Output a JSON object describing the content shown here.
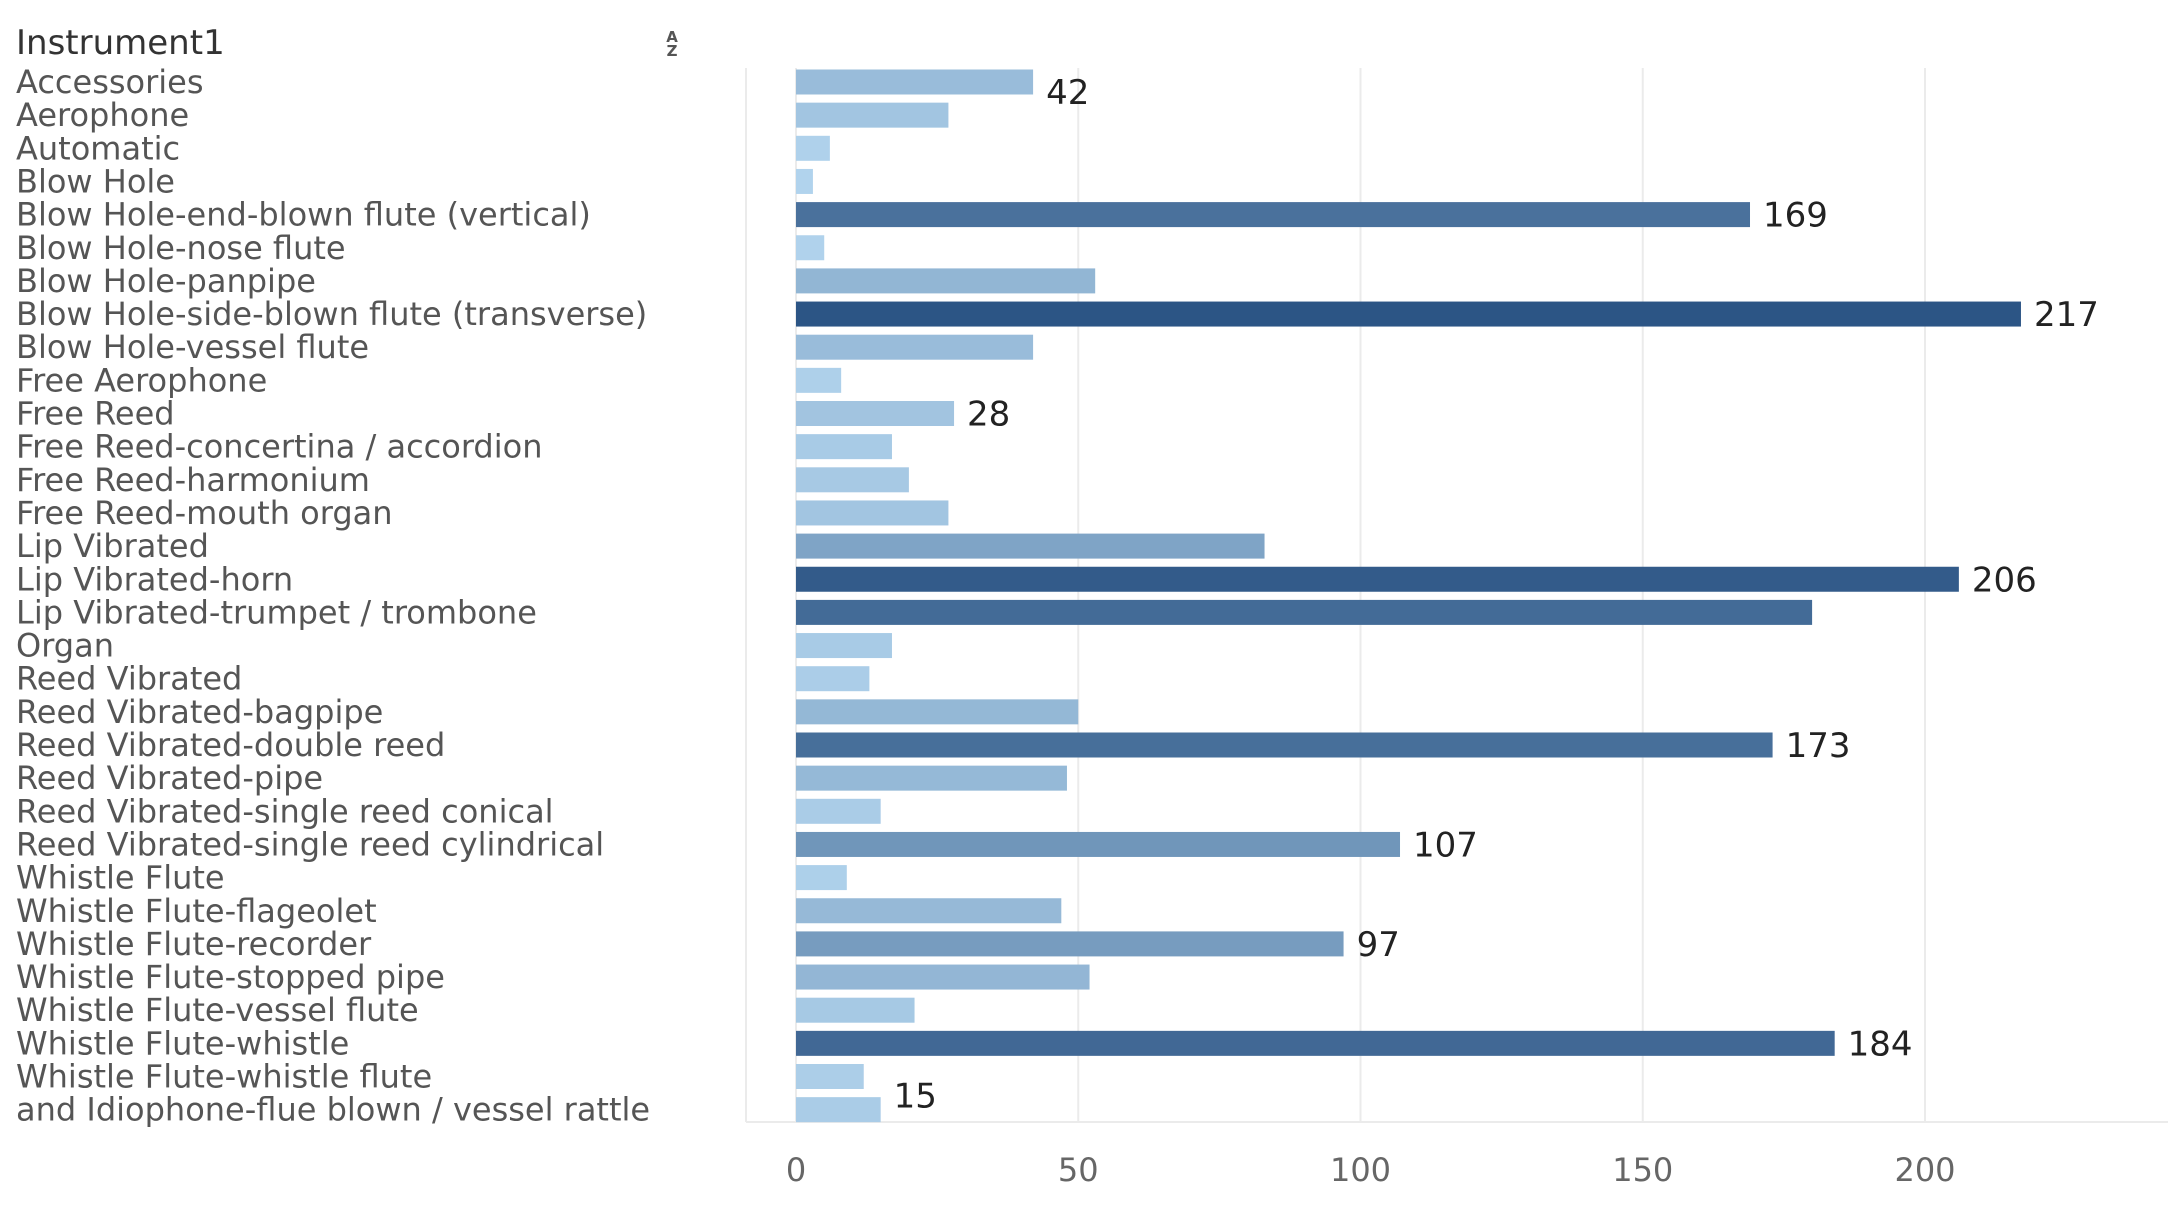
{
  "header": {
    "field_title": "Instrument1",
    "sort_icon": "sort-alpha-icon",
    "sort_icon_glyph_top": "A",
    "sort_icon_glyph_bottom": "Z"
  },
  "colors": {
    "bar_light": "#b3d5ee",
    "bar_dark": "#2c5585",
    "grid": "#ebebeb",
    "axis_text": "#666666"
  },
  "chart_data": {
    "type": "bar",
    "orientation": "horizontal",
    "title": "",
    "xlabel": "",
    "ylabel": "Instrument1",
    "xlim": [
      0,
      236
    ],
    "x_ticks": [
      0,
      50,
      100,
      150,
      200
    ],
    "grid": true,
    "categories": [
      "Accessories",
      "Aerophone",
      "Automatic",
      "Blow Hole",
      "Blow Hole-end-blown flute (vertical)",
      "Blow Hole-nose flute",
      "Blow Hole-panpipe",
      "Blow Hole-side-blown flute (transverse)",
      "Blow Hole-vessel flute",
      "Free Aerophone",
      "Free Reed",
      "Free Reed-concertina / accordion",
      "Free Reed-harmonium",
      "Free Reed-mouth organ",
      "Lip Vibrated",
      "Lip Vibrated-horn",
      "Lip Vibrated-trumpet / trombone",
      "Organ",
      "Reed Vibrated",
      "Reed Vibrated-bagpipe",
      "Reed Vibrated-double reed",
      "Reed Vibrated-pipe",
      "Reed Vibrated-single reed conical",
      "Reed Vibrated-single reed cylindrical",
      "Whistle Flute",
      "Whistle Flute-flageolet",
      "Whistle Flute-recorder",
      "Whistle Flute-stopped pipe",
      "Whistle Flute-vessel flute",
      "Whistle Flute-whistle",
      "Whistle Flute-whistle flute",
      "and Idiophone-flue blown / vessel rattle"
    ],
    "values": [
      42,
      27,
      6,
      3,
      169,
      5,
      53,
      217,
      42,
      8,
      28,
      17,
      20,
      27,
      83,
      206,
      180,
      17,
      13,
      50,
      173,
      48,
      15,
      107,
      9,
      47,
      97,
      52,
      21,
      184,
      12,
      15
    ],
    "data_labels": [
      {
        "category": "Accessories",
        "text": "42"
      },
      {
        "category": "Blow Hole-end-blown flute (vertical)",
        "text": "169"
      },
      {
        "category": "Blow Hole-side-blown flute (transverse)",
        "text": "217"
      },
      {
        "category": "Free Reed",
        "text": "28"
      },
      {
        "category": "Lip Vibrated-horn",
        "text": "206"
      },
      {
        "category": "Reed Vibrated-double reed",
        "text": "173"
      },
      {
        "category": "Reed Vibrated-single reed cylindrical",
        "text": "107"
      },
      {
        "category": "Whistle Flute-recorder",
        "text": "97"
      },
      {
        "category": "Whistle Flute-whistle",
        "text": "184"
      },
      {
        "category": "and Idiophone-flue blown / vessel rattle",
        "text": "15"
      }
    ]
  }
}
